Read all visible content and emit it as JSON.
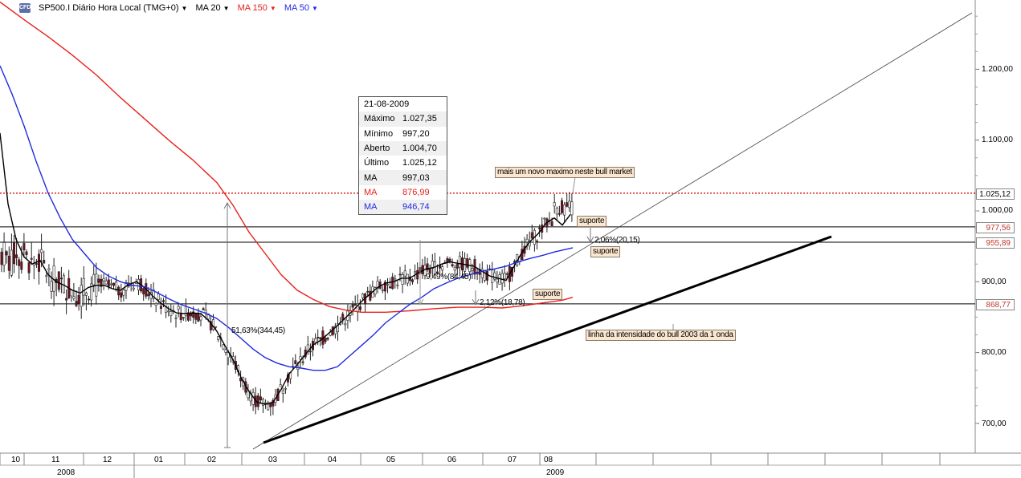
{
  "header": {
    "logo_text": "CFD",
    "symbol": "SP500.I Diário Hora Local (TMG+0)",
    "ma20_label": "MA 20",
    "ma150_label": "MA 150",
    "ma50_label": "MA 50",
    "colors": {
      "ma20": "#000000",
      "ma150": "#e8211c",
      "ma50": "#1f2ae0"
    }
  },
  "tooltip": {
    "date": "21-08-2009",
    "rows": [
      {
        "label": "Máximo",
        "value": "1.027,35",
        "color": "#000000"
      },
      {
        "label": "Mínimo",
        "value": "997,20",
        "color": "#000000"
      },
      {
        "label": "Aberto",
        "value": "1.004,70",
        "color": "#000000"
      },
      {
        "label": "Último",
        "value": "1.025,12",
        "color": "#000000"
      },
      {
        "label": "MA",
        "value": "997,03",
        "color": "#000000"
      },
      {
        "label": "MA",
        "value": "876,99",
        "color": "#e8211c"
      },
      {
        "label": "MA",
        "value": "946,74",
        "color": "#1f2ae0"
      }
    ]
  },
  "annotations": {
    "new_max": "mais um novo maximo neste bull market",
    "suporte1": "suporte",
    "suporte2": "suporte",
    "suporte3": "suporte",
    "pct1": "2,06%(20,15)",
    "pct2": "9,49%(84,45)",
    "pct3": "2,12%(18,78)",
    "pct4": "51,63%(344,45)",
    "trendline": "linha da intensidade do bull 2003 da 1 onda"
  },
  "price_boxes": {
    "last": "1.025,12",
    "level1": "977,56",
    "level2": "955,89",
    "level3": "868,77"
  },
  "chart_data": {
    "type": "line",
    "title": "SP500.I Diário Hora Local (TMG+0)",
    "ylim": [
      652,
      1305
    ],
    "y_ticks": [
      "1.200,00",
      "1.100,00",
      "1.000,00",
      "900,00",
      "800,00",
      "700,00"
    ],
    "y_tick_values": [
      1200,
      1100,
      1000,
      900,
      800,
      700
    ],
    "x_months": [
      "10",
      "11",
      "12",
      "01",
      "02",
      "03",
      "04",
      "05",
      "06",
      "07",
      "08"
    ],
    "x_years": [
      "2008",
      "2009"
    ],
    "horizontal_levels": [
      1025.12,
      977.56,
      955.89,
      868.77
    ],
    "series": [
      {
        "name": "MA 20",
        "color": "#000000",
        "points": [
          [
            0,
            1110
          ],
          [
            10,
            1010
          ],
          [
            20,
            960
          ],
          [
            30,
            935
          ],
          [
            40,
            925
          ],
          [
            50,
            930
          ],
          [
            60,
            910
          ],
          [
            70,
            900
          ],
          [
            80,
            895
          ],
          [
            90,
            888
          ],
          [
            100,
            884
          ],
          [
            110,
            892
          ],
          [
            120,
            895
          ],
          [
            130,
            895
          ],
          [
            140,
            890
          ],
          [
            150,
            888
          ],
          [
            160,
            896
          ],
          [
            170,
            900
          ],
          [
            180,
            892
          ],
          [
            190,
            880
          ],
          [
            200,
            870
          ],
          [
            210,
            862
          ],
          [
            220,
            856
          ],
          [
            230,
            855
          ],
          [
            240,
            856
          ],
          [
            250,
            855
          ],
          [
            260,
            845
          ],
          [
            270,
            830
          ],
          [
            280,
            810
          ],
          [
            290,
            790
          ],
          [
            300,
            765
          ],
          [
            310,
            745
          ],
          [
            320,
            730
          ],
          [
            330,
            727
          ],
          [
            340,
            730
          ],
          [
            350,
            748
          ],
          [
            360,
            770
          ],
          [
            370,
            783
          ],
          [
            380,
            797
          ],
          [
            390,
            811
          ],
          [
            400,
            818
          ],
          [
            410,
            828
          ],
          [
            420,
            838
          ],
          [
            430,
            849
          ],
          [
            440,
            860
          ],
          [
            450,
            872
          ],
          [
            460,
            882
          ],
          [
            470,
            892
          ],
          [
            480,
            898
          ],
          [
            490,
            900
          ],
          [
            500,
            905
          ],
          [
            510,
            905
          ],
          [
            520,
            912
          ],
          [
            530,
            918
          ],
          [
            540,
            920
          ],
          [
            550,
            925
          ],
          [
            560,
            928
          ],
          [
            570,
            926
          ],
          [
            580,
            924
          ],
          [
            590,
            922
          ],
          [
            600,
            915
          ],
          [
            610,
            908
          ],
          [
            620,
            905
          ],
          [
            630,
            902
          ],
          [
            640,
            922
          ],
          [
            650,
            942
          ],
          [
            660,
            957
          ],
          [
            670,
            968
          ],
          [
            680,
            983
          ],
          [
            690,
            990
          ],
          [
            700,
            980
          ],
          [
            710,
            995
          ]
        ]
      },
      {
        "name": "MA 150",
        "color": "#e8211c",
        "points": [
          [
            0,
            1295
          ],
          [
            30,
            1270
          ],
          [
            60,
            1246
          ],
          [
            90,
            1220
          ],
          [
            120,
            1192
          ],
          [
            150,
            1160
          ],
          [
            180,
            1130
          ],
          [
            210,
            1100
          ],
          [
            240,
            1072
          ],
          [
            270,
            1040
          ],
          [
            290,
            1008
          ],
          [
            310,
            970
          ],
          [
            330,
            940
          ],
          [
            350,
            910
          ],
          [
            370,
            888
          ],
          [
            390,
            875
          ],
          [
            410,
            865
          ],
          [
            430,
            860
          ],
          [
            450,
            857
          ],
          [
            480,
            857
          ],
          [
            510,
            859
          ],
          [
            540,
            862
          ],
          [
            570,
            864
          ],
          [
            600,
            864
          ],
          [
            625,
            863
          ],
          [
            650,
            866
          ],
          [
            675,
            870
          ],
          [
            700,
            874
          ],
          [
            713,
            878
          ]
        ]
      },
      {
        "name": "MA 50",
        "color": "#1f2ae0",
        "points": [
          [
            0,
            1205
          ],
          [
            15,
            1165
          ],
          [
            30,
            1120
          ],
          [
            45,
            1070
          ],
          [
            60,
            1025
          ],
          [
            75,
            990
          ],
          [
            90,
            960
          ],
          [
            105,
            940
          ],
          [
            120,
            920
          ],
          [
            135,
            908
          ],
          [
            150,
            900
          ],
          [
            165,
            895
          ],
          [
            180,
            893
          ],
          [
            195,
            885
          ],
          [
            210,
            876
          ],
          [
            225,
            868
          ],
          [
            240,
            862
          ],
          [
            255,
            856
          ],
          [
            270,
            848
          ],
          [
            285,
            835
          ],
          [
            300,
            820
          ],
          [
            315,
            805
          ],
          [
            330,
            793
          ],
          [
            345,
            785
          ],
          [
            360,
            780
          ],
          [
            375,
            778
          ],
          [
            390,
            775
          ],
          [
            405,
            775
          ],
          [
            420,
            780
          ],
          [
            435,
            795
          ],
          [
            450,
            810
          ],
          [
            465,
            825
          ],
          [
            480,
            842
          ],
          [
            495,
            855
          ],
          [
            510,
            868
          ],
          [
            525,
            878
          ],
          [
            540,
            890
          ],
          [
            555,
            898
          ],
          [
            570,
            905
          ],
          [
            585,
            910
          ],
          [
            600,
            915
          ],
          [
            615,
            918
          ],
          [
            630,
            922
          ],
          [
            645,
            928
          ],
          [
            660,
            933
          ],
          [
            675,
            937
          ],
          [
            690,
            942
          ],
          [
            713,
            948
          ]
        ]
      }
    ]
  }
}
